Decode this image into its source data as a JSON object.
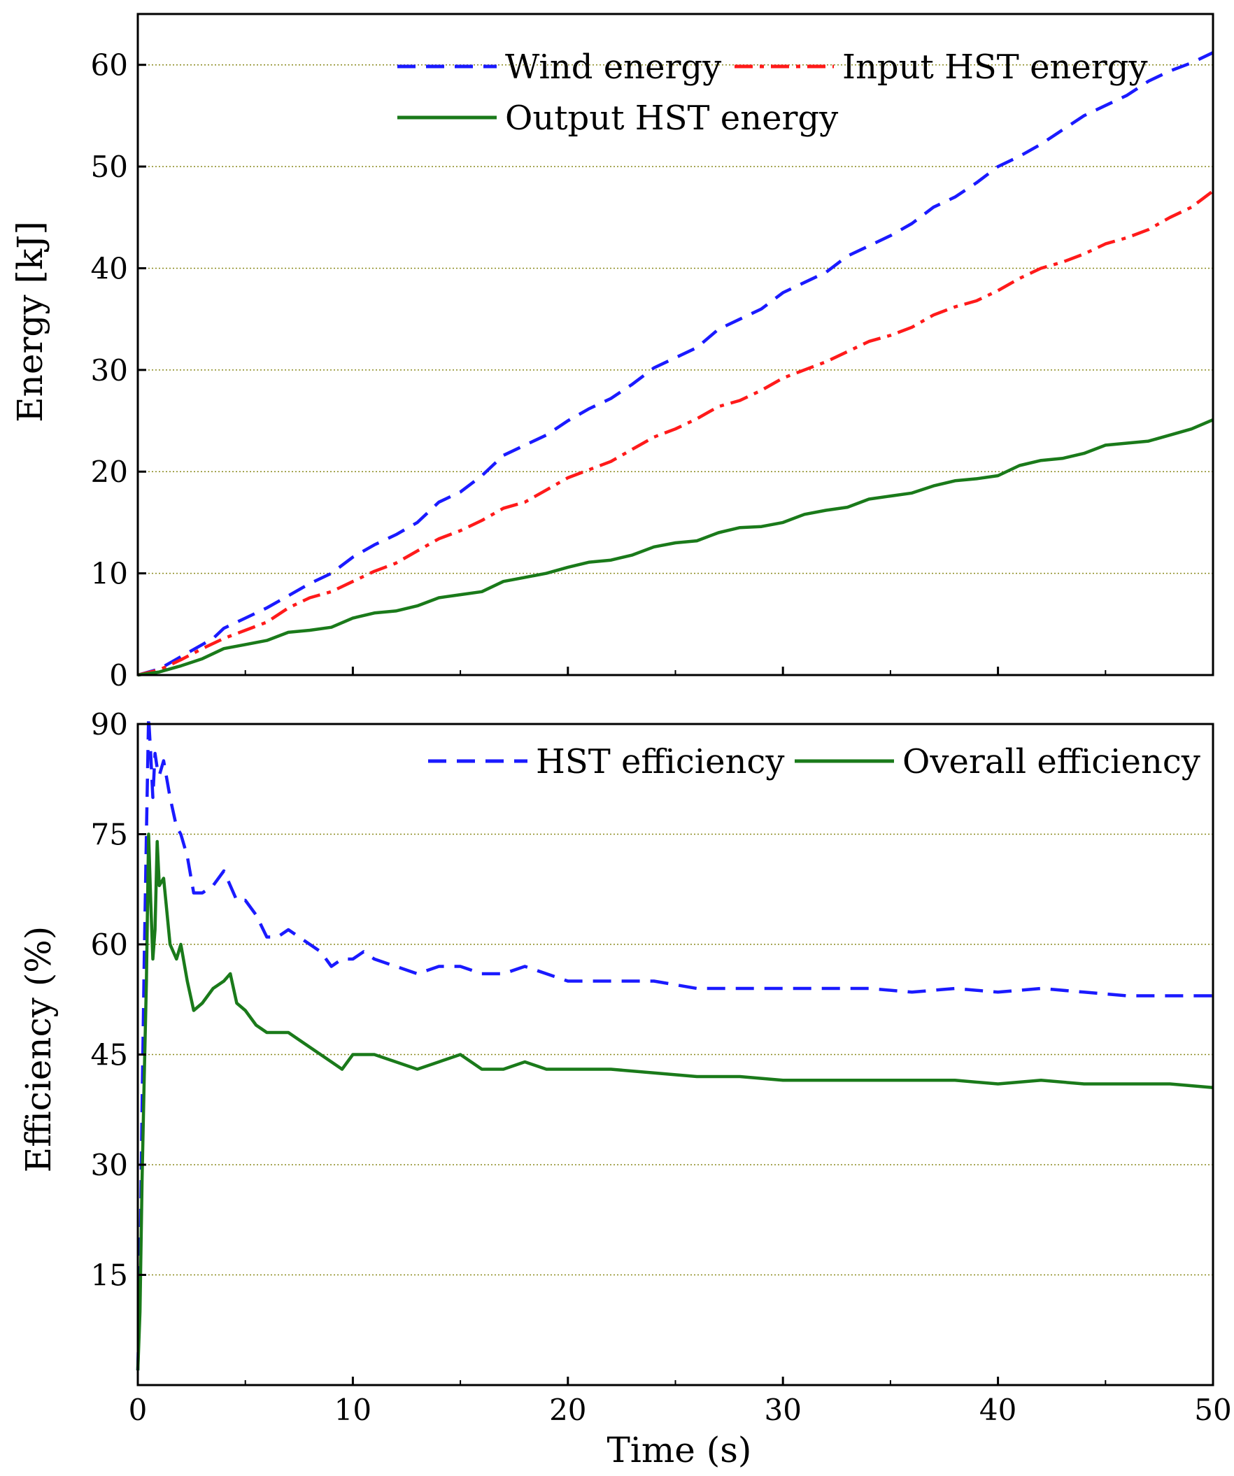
{
  "chart_data": [
    {
      "type": "line",
      "title": "",
      "xlabel": "",
      "ylabel": "Energy [kJ]",
      "xlim": [
        0,
        50
      ],
      "ylim": [
        0,
        65
      ],
      "xticks": [
        0,
        10,
        20,
        30,
        40,
        50
      ],
      "xtick_labels_shown": false,
      "yticks": [
        0,
        10,
        20,
        30,
        40,
        50,
        60
      ],
      "grid": "horizontal dotted",
      "legend_position": "top-right",
      "series": [
        {
          "name": "Wind energy",
          "style": "dashed",
          "color": "#1a1aff",
          "x": [
            0,
            1,
            2,
            3,
            3.5,
            4,
            5,
            6,
            7,
            8,
            9,
            10,
            11,
            12,
            13,
            14,
            15,
            16,
            17,
            18,
            19,
            20,
            21,
            22,
            23,
            24,
            25,
            26,
            27,
            28,
            29,
            30,
            31,
            32,
            33,
            34,
            35,
            36,
            37,
            38,
            39,
            40,
            41,
            42,
            43,
            44,
            45,
            46,
            47,
            48,
            49,
            50
          ],
          "y": [
            0,
            0.6,
            1.8,
            3.0,
            3.6,
            4.6,
            5.6,
            6.6,
            7.8,
            9.0,
            10.0,
            11.6,
            12.8,
            13.8,
            15.0,
            17.0,
            18.0,
            19.6,
            21.6,
            22.6,
            23.6,
            25.0,
            26.2,
            27.2,
            28.6,
            30.2,
            31.2,
            32.2,
            34.0,
            35.0,
            36.0,
            37.6,
            38.6,
            39.6,
            41.2,
            42.2,
            43.2,
            44.4,
            46.0,
            47.0,
            48.4,
            50.0,
            51.0,
            52.2,
            53.6,
            55.0,
            56.0,
            57.0,
            58.4,
            59.4,
            60.2,
            61.2
          ]
        },
        {
          "name": "Input HST energy",
          "style": "dash-dot",
          "color": "#ff1a1a",
          "x": [
            0,
            1,
            2,
            3,
            4,
            5,
            6,
            7,
            8,
            9,
            10,
            11,
            12,
            13,
            14,
            15,
            16,
            17,
            18,
            19,
            20,
            21,
            22,
            23,
            24,
            25,
            26,
            27,
            28,
            29,
            30,
            31,
            32,
            33,
            34,
            35,
            36,
            37,
            38,
            39,
            40,
            41,
            42,
            43,
            44,
            45,
            46,
            47,
            48,
            49,
            50
          ],
          "y": [
            0,
            0.5,
            1.5,
            2.6,
            3.6,
            4.4,
            5.2,
            6.6,
            7.6,
            8.2,
            9.2,
            10.2,
            11.0,
            12.2,
            13.4,
            14.2,
            15.2,
            16.4,
            17.0,
            18.2,
            19.4,
            20.2,
            21.0,
            22.2,
            23.4,
            24.2,
            25.2,
            26.4,
            27.0,
            28.0,
            29.2,
            30.0,
            30.8,
            31.8,
            32.8,
            33.4,
            34.2,
            35.4,
            36.2,
            36.8,
            37.8,
            39.0,
            40.0,
            40.6,
            41.4,
            42.4,
            43.0,
            43.8,
            45.0,
            46.0,
            47.6
          ]
        },
        {
          "name": "Output HST energy",
          "style": "solid",
          "color": "#1a7a1a",
          "x": [
            0,
            1,
            2,
            3,
            4,
            5,
            6,
            7,
            8,
            9,
            10,
            11,
            12,
            13,
            14,
            15,
            16,
            17,
            18,
            19,
            20,
            21,
            22,
            23,
            24,
            25,
            26,
            27,
            28,
            29,
            30,
            31,
            32,
            33,
            34,
            35,
            36,
            37,
            38,
            39,
            40,
            41,
            42,
            43,
            44,
            45,
            46,
            47,
            48,
            49,
            50
          ],
          "y": [
            0,
            0.3,
            0.9,
            1.6,
            2.6,
            3.0,
            3.4,
            4.2,
            4.4,
            4.7,
            5.6,
            6.1,
            6.3,
            6.8,
            7.6,
            7.9,
            8.2,
            9.2,
            9.6,
            10.0,
            10.6,
            11.1,
            11.3,
            11.8,
            12.6,
            13.0,
            13.2,
            14.0,
            14.5,
            14.6,
            15.0,
            15.8,
            16.2,
            16.5,
            17.3,
            17.6,
            17.9,
            18.6,
            19.1,
            19.3,
            19.6,
            20.6,
            21.1,
            21.3,
            21.8,
            22.6,
            22.8,
            23.0,
            23.6,
            24.2,
            25.1
          ]
        }
      ]
    },
    {
      "type": "line",
      "title": "",
      "xlabel": "Time (s)",
      "ylabel": "Efficiency (%)",
      "xlim": [
        0,
        50
      ],
      "ylim": [
        0,
        90
      ],
      "xticks": [
        0,
        10,
        20,
        30,
        40,
        50
      ],
      "yticks": [
        15,
        30,
        45,
        60,
        75,
        90
      ],
      "grid": "horizontal dotted",
      "legend_position": "top-right",
      "series": [
        {
          "name": "HST efficiency",
          "style": "dashed",
          "color": "#1a1aff",
          "x": [
            0,
            0.1,
            0.2,
            0.3,
            0.4,
            0.5,
            0.6,
            0.7,
            0.8,
            0.9,
            1.0,
            1.2,
            1.5,
            1.8,
            2.0,
            2.3,
            2.6,
            3.0,
            3.5,
            4.0,
            4.3,
            4.6,
            5.0,
            5.5,
            6.0,
            6.5,
            7.0,
            7.5,
            8.0,
            8.5,
            9.0,
            9.5,
            10,
            10.5,
            11,
            12,
            13,
            14,
            15,
            16,
            17,
            18,
            19,
            20,
            22,
            24,
            26,
            28,
            30,
            32,
            34,
            36,
            38,
            40,
            42,
            44,
            46,
            48,
            50
          ],
          "y": [
            2,
            15,
            38,
            58,
            75,
            91,
            86,
            80,
            86,
            84,
            83,
            85,
            80,
            76,
            75,
            72,
            67,
            67,
            68,
            70,
            68,
            66,
            66,
            64,
            61,
            61,
            62,
            61,
            60,
            59,
            57,
            58,
            58,
            59,
            58,
            57,
            56,
            57,
            57,
            56,
            56,
            57,
            56,
            55,
            55,
            55,
            54,
            54,
            54,
            54,
            54,
            53.5,
            54,
            53.5,
            54,
            53.5,
            53,
            53,
            53
          ]
        },
        {
          "name": "Overall efficiency",
          "style": "solid",
          "color": "#1a7a1a",
          "x": [
            0,
            0.1,
            0.2,
            0.3,
            0.4,
            0.5,
            0.6,
            0.7,
            0.8,
            0.9,
            1.0,
            1.2,
            1.5,
            1.8,
            2.0,
            2.3,
            2.6,
            3.0,
            3.5,
            4.0,
            4.3,
            4.6,
            5.0,
            5.5,
            6.0,
            6.5,
            7.0,
            7.5,
            8.0,
            8.5,
            9.0,
            9.5,
            10,
            10.5,
            11,
            12,
            13,
            14,
            15,
            16,
            17,
            18,
            19,
            20,
            22,
            24,
            26,
            28,
            30,
            32,
            34,
            36,
            38,
            40,
            42,
            44,
            46,
            48,
            50
          ],
          "y": [
            2,
            10,
            28,
            42,
            55,
            75,
            66,
            58,
            62,
            74,
            68,
            69,
            60,
            58,
            60,
            55,
            51,
            52,
            54,
            55,
            56,
            52,
            51,
            49,
            48,
            48,
            48,
            47,
            46,
            45,
            44,
            43,
            45,
            45,
            45,
            44,
            43,
            44,
            45,
            43,
            43,
            44,
            43,
            43,
            43,
            42.5,
            42,
            42,
            41.5,
            41.5,
            41.5,
            41.5,
            41.5,
            41,
            41.5,
            41,
            41,
            41,
            40.5
          ]
        }
      ]
    }
  ]
}
